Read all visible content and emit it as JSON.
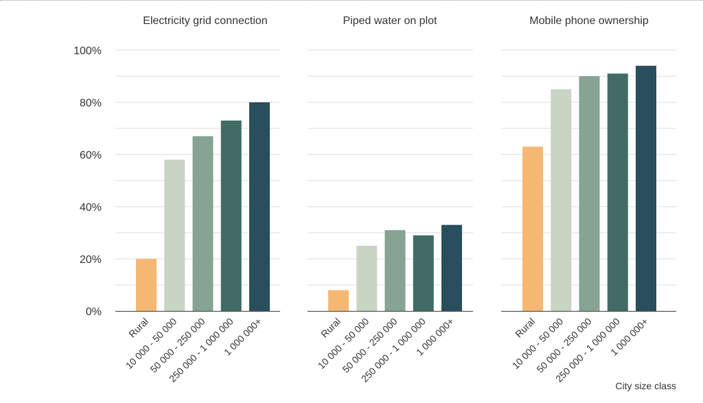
{
  "chart_data": {
    "type": "bar",
    "x_axis_title": "City size class",
    "categories": [
      "Rural",
      "10 000 - 50 000",
      "50 000 - 250 000",
      "250 000 - 1 000 000",
      "1 000 000+"
    ],
    "y_ticks": [
      "0%",
      "20%",
      "40%",
      "60%",
      "80%",
      "100%"
    ],
    "ylim": [
      0,
      100
    ],
    "grid": true,
    "colors": [
      "#F5B873",
      "#C8D4C4",
      "#86A393",
      "#416B64",
      "#294E5C"
    ],
    "panels": [
      {
        "title": "Electricity grid connection",
        "values": [
          20,
          58,
          67,
          73,
          80
        ]
      },
      {
        "title": "Piped water on plot",
        "values": [
          8,
          25,
          31,
          29,
          33
        ]
      },
      {
        "title": "Mobile phone ownership",
        "values": [
          63,
          85,
          90,
          91,
          94
        ]
      }
    ]
  }
}
